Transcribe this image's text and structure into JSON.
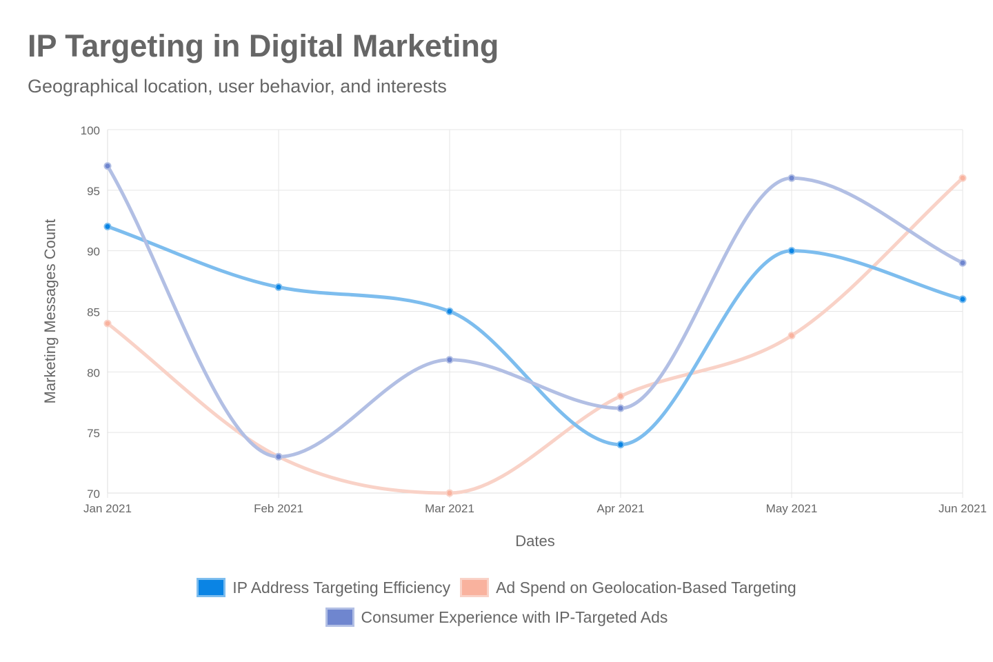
{
  "chart_data": {
    "type": "line",
    "title": "IP Targeting in Digital Marketing",
    "subtitle": "Geographical location, user behavior, and interests",
    "xlabel": "Dates",
    "ylabel": "Marketing Messages Count",
    "categories": [
      "Jan 2021",
      "Feb 2021",
      "Mar 2021",
      "Apr 2021",
      "May 2021",
      "Jun 2021"
    ],
    "ylim": [
      70,
      100
    ],
    "yticks": [
      70,
      75,
      80,
      85,
      90,
      95,
      100
    ],
    "grid": true,
    "legend_position": "bottom",
    "series": [
      {
        "name": "IP Address Targeting Efficiency",
        "values": [
          92,
          87,
          85,
          74,
          90,
          86
        ],
        "color": "#0A84E4",
        "line_color": "#7DBDEE"
      },
      {
        "name": "Ad Spend on Geolocation-Based Targeting",
        "values": [
          84,
          73,
          70,
          78,
          83,
          96
        ],
        "color": "#F9B29E",
        "line_color": "#F9D2C7"
      },
      {
        "name": "Consumer Experience with IP-Targeted Ads",
        "values": [
          97,
          73,
          81,
          77,
          96,
          89
        ],
        "color": "#6F86CF",
        "line_color": "#B2BFE4"
      }
    ]
  }
}
